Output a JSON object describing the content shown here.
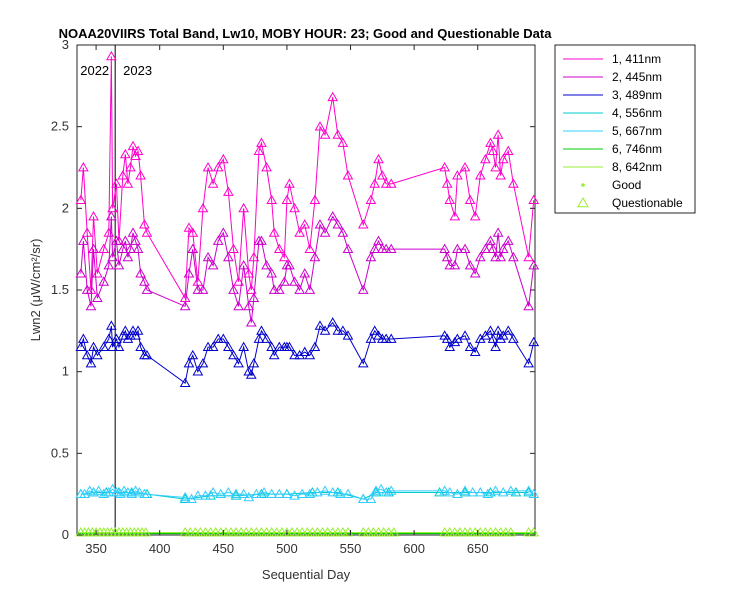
{
  "chart_data": {
    "type": "line",
    "title": "NOAA20VIIRS Total Band, Lw10, MOBY HOUR: 23;  Good and Questionable Data",
    "xlabel": "Sequential Day",
    "ylabel": "Lwn2 (μW/cm²/sr)",
    "xlim": [
      335,
      695
    ],
    "ylim": [
      0,
      3
    ],
    "xticks": [
      350,
      400,
      450,
      500,
      550,
      600,
      650
    ],
    "yticks": [
      0,
      0.5,
      1,
      1.5,
      2,
      2.5,
      3
    ],
    "ytick_labels": [
      "0",
      "0.5",
      "1",
      "1.5",
      "2",
      "2.5",
      "3"
    ],
    "grid": false,
    "legend_position": "outside-right",
    "year_marker": {
      "x": 365,
      "left_label": "2022",
      "right_label": "2023"
    },
    "series": [
      {
        "name": "1, 411nm",
        "color": "#ff00cc",
        "x": [
          338,
          340,
          343,
          346,
          348,
          351,
          356,
          360,
          362,
          363,
          366,
          368,
          371,
          373,
          375,
          377,
          379,
          381,
          383,
          385,
          388,
          390,
          420,
          423,
          426,
          430,
          434,
          438,
          442,
          446,
          450,
          454,
          458,
          462,
          466,
          470,
          472,
          474,
          478,
          480,
          484,
          488,
          490,
          494,
          498,
          500,
          502,
          506,
          510,
          514,
          518,
          522,
          526,
          530,
          536,
          540,
          544,
          548,
          560,
          566,
          569,
          572,
          575,
          578,
          582,
          624,
          626,
          628,
          632,
          634,
          640,
          644,
          648,
          652,
          656,
          660,
          662,
          664,
          666,
          668,
          670,
          674,
          678,
          690,
          694
        ],
        "y": [
          2.05,
          2.25,
          1.85,
          1.5,
          1.95,
          1.6,
          1.75,
          1.85,
          2.93,
          2.0,
          2.15,
          1.8,
          2.2,
          2.33,
          2.15,
          2.25,
          2.38,
          2.32,
          2.35,
          2.2,
          1.9,
          1.85,
          1.45,
          1.88,
          1.85,
          1.55,
          2.0,
          2.25,
          2.15,
          2.25,
          2.3,
          2.1,
          1.75,
          1.55,
          2.0,
          1.6,
          1.5,
          1.7,
          2.35,
          2.4,
          2.25,
          2.05,
          1.85,
          1.75,
          1.7,
          2.05,
          2.15,
          2.0,
          1.85,
          1.9,
          1.75,
          2.05,
          2.5,
          2.45,
          2.68,
          2.45,
          2.4,
          2.2,
          1.9,
          2.05,
          2.15,
          2.3,
          2.2,
          2.15,
          2.15,
          2.25,
          2.15,
          2.05,
          1.95,
          2.2,
          2.25,
          2.05,
          1.95,
          2.2,
          2.3,
          2.4,
          2.35,
          2.25,
          2.45,
          2.2,
          2.3,
          2.35,
          2.15,
          1.7,
          2.05
        ]
      },
      {
        "name": "2, 445nm",
        "color": "#cc00cc",
        "x": [
          338,
          340,
          343,
          346,
          348,
          351,
          356,
          360,
          362,
          363,
          366,
          368,
          371,
          373,
          375,
          377,
          379,
          381,
          383,
          385,
          388,
          390,
          420,
          423,
          426,
          430,
          434,
          438,
          442,
          446,
          450,
          454,
          458,
          462,
          466,
          470,
          472,
          474,
          478,
          480,
          484,
          488,
          490,
          494,
          498,
          500,
          502,
          506,
          510,
          514,
          518,
          522,
          526,
          530,
          536,
          540,
          544,
          548,
          560,
          566,
          569,
          572,
          575,
          578,
          582,
          624,
          626,
          628,
          632,
          634,
          640,
          644,
          648,
          652,
          656,
          660,
          662,
          664,
          666,
          668,
          670,
          674,
          678,
          690,
          694
        ],
        "y": [
          1.6,
          1.8,
          1.5,
          1.4,
          1.75,
          1.45,
          1.55,
          1.65,
          1.95,
          1.7,
          1.8,
          1.65,
          1.75,
          1.8,
          1.7,
          1.75,
          1.85,
          1.8,
          1.75,
          1.6,
          1.55,
          1.5,
          1.4,
          1.6,
          1.75,
          1.5,
          1.5,
          1.7,
          1.65,
          1.8,
          1.85,
          1.7,
          1.5,
          1.4,
          1.65,
          1.4,
          1.3,
          1.45,
          1.8,
          1.8,
          1.65,
          1.6,
          1.5,
          1.5,
          1.55,
          1.65,
          1.65,
          1.55,
          1.5,
          1.6,
          1.5,
          1.7,
          1.9,
          1.85,
          1.95,
          1.9,
          1.85,
          1.75,
          1.5,
          1.7,
          1.75,
          1.8,
          1.75,
          1.75,
          1.75,
          1.75,
          1.7,
          1.65,
          1.65,
          1.75,
          1.75,
          1.65,
          1.6,
          1.7,
          1.75,
          1.8,
          1.75,
          1.7,
          1.85,
          1.7,
          1.75,
          1.8,
          1.7,
          1.4,
          1.65
        ]
      },
      {
        "name": "3, 489nm",
        "color": "#0000cc",
        "x": [
          338,
          340,
          343,
          346,
          348,
          351,
          356,
          360,
          362,
          363,
          366,
          368,
          371,
          373,
          375,
          377,
          379,
          381,
          383,
          385,
          388,
          390,
          420,
          423,
          426,
          430,
          434,
          438,
          442,
          446,
          450,
          454,
          458,
          462,
          466,
          470,
          472,
          474,
          478,
          480,
          484,
          488,
          490,
          494,
          498,
          500,
          502,
          506,
          510,
          514,
          518,
          522,
          526,
          530,
          536,
          540,
          544,
          548,
          560,
          566,
          569,
          572,
          575,
          578,
          582,
          624,
          626,
          628,
          632,
          634,
          640,
          644,
          648,
          652,
          656,
          660,
          662,
          664,
          666,
          668,
          670,
          674,
          678,
          690,
          694
        ],
        "y": [
          1.15,
          1.2,
          1.1,
          1.05,
          1.15,
          1.1,
          1.15,
          1.2,
          1.28,
          1.15,
          1.2,
          1.15,
          1.22,
          1.25,
          1.2,
          1.22,
          1.25,
          1.22,
          1.25,
          1.15,
          1.1,
          1.1,
          0.93,
          1.05,
          1.1,
          1.0,
          1.05,
          1.15,
          1.15,
          1.2,
          1.2,
          1.15,
          1.1,
          1.05,
          1.15,
          1.0,
          0.98,
          1.05,
          1.2,
          1.25,
          1.2,
          1.15,
          1.1,
          1.15,
          1.15,
          1.15,
          1.15,
          1.1,
          1.1,
          1.12,
          1.1,
          1.15,
          1.28,
          1.25,
          1.3,
          1.25,
          1.25,
          1.22,
          1.05,
          1.2,
          1.25,
          1.22,
          1.2,
          1.2,
          1.2,
          1.22,
          1.2,
          1.15,
          1.18,
          1.2,
          1.22,
          1.15,
          1.12,
          1.2,
          1.22,
          1.25,
          1.2,
          1.15,
          1.25,
          1.2,
          1.22,
          1.25,
          1.2,
          1.05,
          1.18
        ]
      },
      {
        "name": "4, 556nm",
        "color": "#00cccc",
        "x": [
          338,
          348,
          358,
          368,
          378,
          390,
          420,
          440,
          460,
          480,
          500,
          520,
          540,
          560,
          570,
          580,
          620,
          640,
          660,
          680,
          690
        ],
        "y": [
          0.25,
          0.26,
          0.26,
          0.26,
          0.26,
          0.25,
          0.22,
          0.24,
          0.24,
          0.25,
          0.25,
          0.26,
          0.26,
          0.22,
          0.26,
          0.26,
          0.26,
          0.26,
          0.26,
          0.26,
          0.26
        ]
      },
      {
        "name": "5, 667nm",
        "color": "#33ccff",
        "x": [
          338,
          341,
          345,
          348,
          352,
          356,
          360,
          363,
          366,
          369,
          372,
          375,
          378,
          381,
          384,
          388,
          420,
          425,
          430,
          436,
          442,
          448,
          454,
          460,
          466,
          470,
          476,
          482,
          488,
          494,
          500,
          506,
          512,
          518,
          524,
          530,
          536,
          542,
          548,
          560,
          566,
          570,
          574,
          578,
          582,
          624,
          628,
          634,
          640,
          646,
          652,
          658,
          664,
          670,
          676,
          690,
          694
        ],
        "y": [
          0.25,
          0.25,
          0.27,
          0.26,
          0.27,
          0.25,
          0.26,
          0.28,
          0.26,
          0.25,
          0.27,
          0.26,
          0.25,
          0.27,
          0.26,
          0.25,
          0.23,
          0.22,
          0.24,
          0.24,
          0.26,
          0.25,
          0.26,
          0.25,
          0.25,
          0.23,
          0.25,
          0.26,
          0.25,
          0.25,
          0.25,
          0.24,
          0.25,
          0.25,
          0.26,
          0.27,
          0.26,
          0.25,
          0.25,
          0.22,
          0.22,
          0.27,
          0.28,
          0.26,
          0.27,
          0.27,
          0.26,
          0.25,
          0.27,
          0.26,
          0.26,
          0.25,
          0.27,
          0.26,
          0.27,
          0.27,
          0.25
        ]
      },
      {
        "name": "6, 746nm",
        "color": "#00cc00",
        "x": [
          335,
          695
        ],
        "y": [
          0.01,
          0.01
        ]
      },
      {
        "name": "8, 642nm",
        "color": "#99ee33",
        "x": [
          338,
          341,
          344,
          347,
          350,
          353,
          356,
          359,
          362,
          365,
          368,
          371,
          374,
          377,
          380,
          383,
          386,
          389,
          420,
          424,
          428,
          432,
          436,
          440,
          444,
          448,
          452,
          456,
          460,
          464,
          468,
          472,
          476,
          480,
          484,
          488,
          492,
          496,
          500,
          504,
          508,
          512,
          516,
          520,
          524,
          528,
          532,
          536,
          540,
          544,
          548,
          560,
          564,
          568,
          572,
          576,
          580,
          584,
          624,
          628,
          632,
          636,
          640,
          644,
          648,
          652,
          656,
          660,
          664,
          668,
          672,
          676,
          690,
          694
        ],
        "y": [
          0.015,
          0.015,
          0.015,
          0.015,
          0.015,
          0.015,
          0.015,
          0.015,
          0.015,
          0.015,
          0.015,
          0.015,
          0.015,
          0.015,
          0.015,
          0.015,
          0.015,
          0.015,
          0.015,
          0.015,
          0.015,
          0.015,
          0.015,
          0.015,
          0.015,
          0.015,
          0.015,
          0.015,
          0.015,
          0.015,
          0.015,
          0.015,
          0.015,
          0.015,
          0.015,
          0.015,
          0.015,
          0.015,
          0.015,
          0.015,
          0.015,
          0.015,
          0.015,
          0.015,
          0.015,
          0.015,
          0.015,
          0.015,
          0.015,
          0.015,
          0.015,
          0.015,
          0.015,
          0.015,
          0.015,
          0.015,
          0.015,
          0.015,
          0.015,
          0.015,
          0.015,
          0.015,
          0.015,
          0.015,
          0.015,
          0.015,
          0.015,
          0.015,
          0.015,
          0.015,
          0.015,
          0.015,
          0.015,
          0.015
        ]
      }
    ],
    "legend_markers": [
      {
        "label": "Good",
        "color": "#99ee33",
        "marker": "dot"
      },
      {
        "label": "Questionable",
        "color": "#99ee33",
        "marker": "triangle"
      }
    ]
  }
}
